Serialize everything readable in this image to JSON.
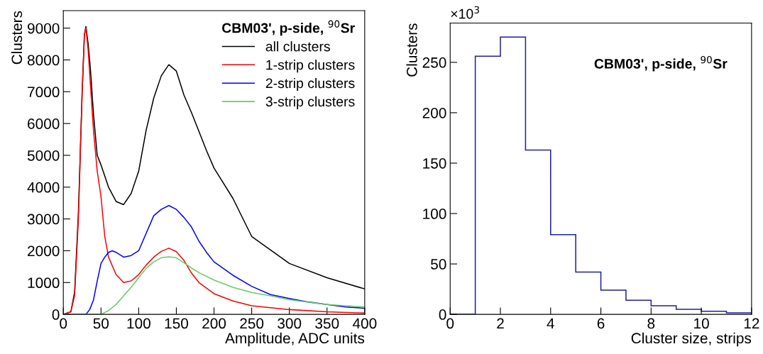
{
  "chart_data": [
    {
      "type": "line",
      "xlabel": "Amplitude, ADC units",
      "ylabel": "Clusters",
      "legend_title": "CBM03', p-side, $^{90}$Sr",
      "legend": "top right",
      "grid": false,
      "xlim": [
        0,
        400
      ],
      "ylim": [
        0,
        9550
      ],
      "xticks": [
        0,
        50,
        100,
        150,
        200,
        250,
        300,
        350,
        400
      ],
      "yticks": [
        0,
        1000,
        2000,
        3000,
        4000,
        5000,
        6000,
        7000,
        8000,
        9000
      ],
      "series": [
        {
          "name": "all clusters",
          "color": "#000000",
          "x": [
            0,
            10,
            15,
            20,
            25,
            28,
            30,
            33,
            36,
            40,
            45,
            50,
            60,
            70,
            80,
            90,
            100,
            110,
            120,
            130,
            140,
            150,
            160,
            170,
            180,
            190,
            200,
            225,
            250,
            300,
            350,
            400
          ],
          "values": [
            0,
            80,
            700,
            3200,
            7000,
            8800,
            9050,
            8500,
            7700,
            6300,
            5000,
            4700,
            4000,
            3550,
            3450,
            3800,
            4500,
            5800,
            6800,
            7500,
            7850,
            7650,
            6900,
            6350,
            5750,
            5150,
            4600,
            3650,
            2450,
            1600,
            1150,
            800
          ]
        },
        {
          "name": "1-strip clusters",
          "color": "#ff0000",
          "x": [
            0,
            10,
            15,
            20,
            25,
            28,
            30,
            33,
            36,
            40,
            45,
            50,
            55,
            60,
            70,
            80,
            90,
            100,
            110,
            120,
            130,
            140,
            150,
            160,
            170,
            180,
            200,
            225,
            250,
            300,
            350,
            400
          ],
          "values": [
            0,
            80,
            600,
            3000,
            7000,
            8800,
            9000,
            8300,
            7200,
            5800,
            4500,
            3700,
            2450,
            1800,
            1250,
            1000,
            1050,
            1250,
            1550,
            1800,
            1980,
            2080,
            1970,
            1700,
            1300,
            1000,
            650,
            420,
            270,
            150,
            80,
            40
          ]
        },
        {
          "name": "2-strip clusters",
          "color": "#0000ff",
          "x": [
            0,
            30,
            35,
            40,
            45,
            50,
            55,
            60,
            65,
            70,
            80,
            90,
            100,
            110,
            120,
            130,
            140,
            150,
            160,
            170,
            180,
            190,
            200,
            225,
            250,
            275,
            300,
            325,
            350,
            375,
            400
          ],
          "values": [
            0,
            0,
            150,
            450,
            1050,
            1600,
            1800,
            1950,
            2000,
            1950,
            1800,
            1850,
            2000,
            2550,
            3100,
            3300,
            3420,
            3300,
            3050,
            2750,
            2300,
            1950,
            1650,
            1230,
            880,
            620,
            500,
            390,
            310,
            230,
            190
          ]
        },
        {
          "name": "3-strip clusters",
          "color": "#66cc66",
          "x": [
            0,
            50,
            60,
            70,
            80,
            90,
            100,
            110,
            120,
            130,
            140,
            150,
            160,
            170,
            180,
            200,
            225,
            250,
            275,
            300,
            350,
            400
          ],
          "values": [
            0,
            0,
            120,
            310,
            580,
            850,
            1150,
            1450,
            1650,
            1780,
            1810,
            1780,
            1620,
            1460,
            1310,
            1080,
            850,
            690,
            580,
            460,
            310,
            230
          ]
        }
      ]
    },
    {
      "type": "histogram",
      "xlabel": "Cluster size, strips",
      "ylabel": "Clusters",
      "color": "#1f1fa0",
      "grid": false,
      "legend": false,
      "bins": [
        0,
        1,
        2,
        3,
        4,
        5,
        6,
        7,
        8,
        9,
        10,
        11,
        12
      ],
      "values": [
        0,
        256,
        275,
        163,
        79,
        42,
        24,
        14,
        8.5,
        5,
        3,
        1.5
      ],
      "xlim": [
        0,
        12
      ],
      "ylim": [
        0,
        289
      ],
      "xticks": [
        0,
        2,
        4,
        6,
        8,
        10,
        12
      ],
      "yticks": [
        0,
        50,
        100,
        150,
        200,
        250
      ],
      "annotations": [
        "×10$^{3}$",
        "CBM03', p-side, $^{90}$Sr"
      ]
    }
  ]
}
